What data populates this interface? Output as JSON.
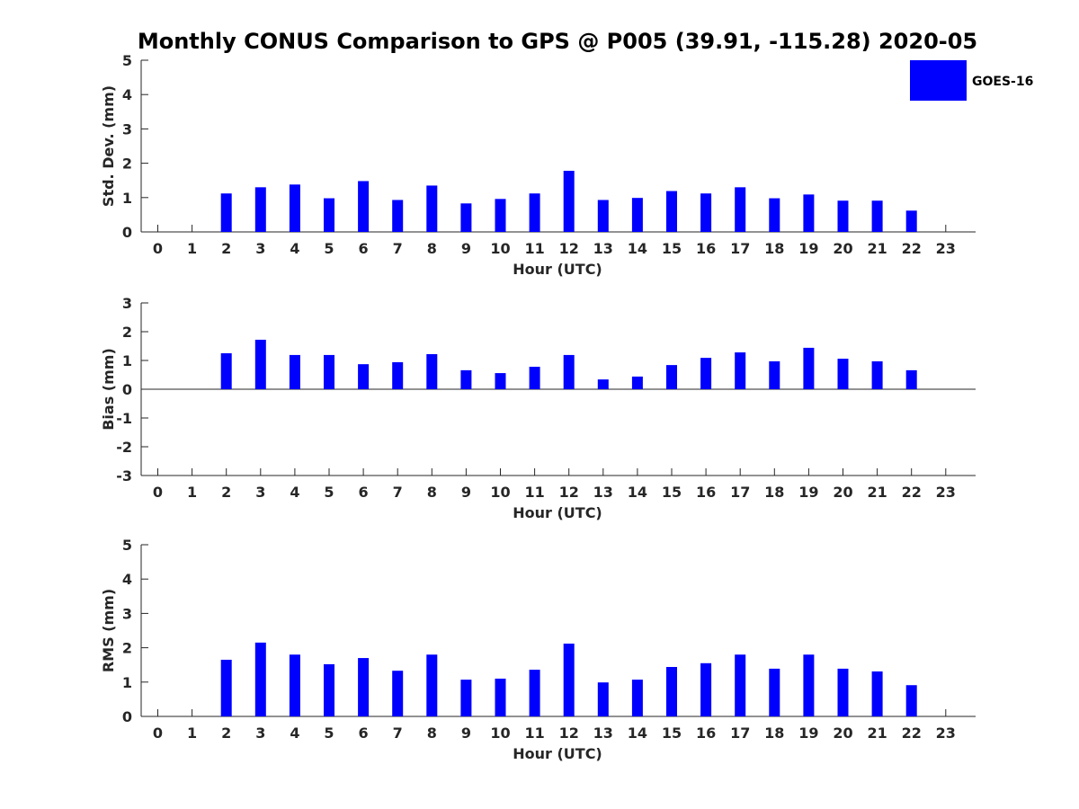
{
  "title": "Monthly CONUS Comparison to GPS @ P005 (39.91, -115.28) 2020-05",
  "legend": {
    "label": "GOES-16",
    "color": "#0000ff",
    "placement": "top-right"
  },
  "chart_data": [
    {
      "type": "bar",
      "categories": [
        "0",
        "1",
        "2",
        "3",
        "4",
        "5",
        "6",
        "7",
        "8",
        "9",
        "10",
        "11",
        "12",
        "13",
        "14",
        "15",
        "16",
        "17",
        "18",
        "19",
        "20",
        "21",
        "22",
        "23"
      ],
      "series": [
        {
          "name": "GOES-16",
          "color": "#0000ff",
          "values": [
            null,
            null,
            1.12,
            1.3,
            1.38,
            0.98,
            1.48,
            0.93,
            1.35,
            0.83,
            0.96,
            1.12,
            1.78,
            0.93,
            0.99,
            1.19,
            1.12,
            1.3,
            0.98,
            1.09,
            0.91,
            0.91,
            0.62,
            null
          ]
        }
      ],
      "xlabel": "Hour (UTC)",
      "ylabel": "Std. Dev. (mm)",
      "ylim": [
        0,
        5
      ],
      "yticks": [
        "0",
        "1",
        "2",
        "3",
        "4",
        "5"
      ],
      "grid": false
    },
    {
      "type": "bar",
      "categories": [
        "0",
        "1",
        "2",
        "3",
        "4",
        "5",
        "6",
        "7",
        "8",
        "9",
        "10",
        "11",
        "12",
        "13",
        "14",
        "15",
        "16",
        "17",
        "18",
        "19",
        "20",
        "21",
        "22",
        "23"
      ],
      "series": [
        {
          "name": "GOES-16",
          "color": "#0000ff",
          "values": [
            null,
            null,
            1.25,
            1.72,
            1.19,
            1.19,
            0.87,
            0.94,
            1.22,
            0.66,
            0.56,
            0.78,
            1.19,
            0.34,
            0.44,
            0.84,
            1.09,
            1.28,
            0.97,
            1.44,
            1.06,
            0.97,
            0.66,
            null
          ]
        }
      ],
      "xlabel": "Hour (UTC)",
      "ylabel": "Bias (mm)",
      "ylim": [
        -3,
        3
      ],
      "yticks": [
        "-3",
        "-2",
        "-1",
        "0",
        "1",
        "2",
        "3"
      ],
      "grid": false
    },
    {
      "type": "bar",
      "categories": [
        "0",
        "1",
        "2",
        "3",
        "4",
        "5",
        "6",
        "7",
        "8",
        "9",
        "10",
        "11",
        "12",
        "13",
        "14",
        "15",
        "16",
        "17",
        "18",
        "19",
        "20",
        "21",
        "22",
        "23"
      ],
      "series": [
        {
          "name": "GOES-16",
          "color": "#0000ff",
          "values": [
            null,
            null,
            1.65,
            2.15,
            1.8,
            1.52,
            1.7,
            1.33,
            1.8,
            1.07,
            1.1,
            1.36,
            2.12,
            0.99,
            1.07,
            1.44,
            1.55,
            1.8,
            1.39,
            1.8,
            1.39,
            1.31,
            0.91,
            null
          ]
        }
      ],
      "xlabel": "Hour (UTC)",
      "ylabel": "RMS (mm)",
      "ylim": [
        0,
        5
      ],
      "yticks": [
        "0",
        "1",
        "2",
        "3",
        "4",
        "5"
      ],
      "grid": false
    }
  ]
}
